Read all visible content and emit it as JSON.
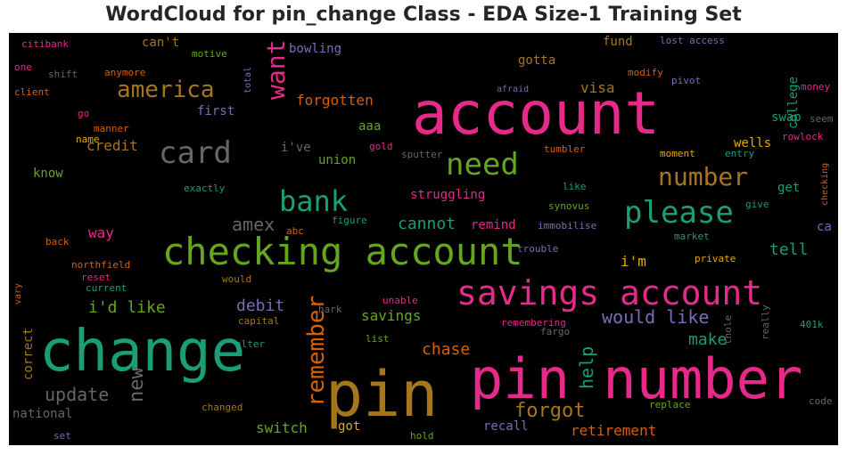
{
  "title": "WordCloud for pin_change Class - EDA Size-1 Training Set",
  "colors": {
    "background": "#000000",
    "palette": [
      "#e7298a",
      "#1b9e77",
      "#66a61e",
      "#d95f02",
      "#7570b3",
      "#a6761d",
      "#666666",
      "#e6ab02"
    ]
  },
  "chart_data": {
    "type": "wordcloud",
    "words": [
      {
        "text": "account",
        "color": "#e7298a"
      },
      {
        "text": "pin number",
        "color": "#e7298a"
      },
      {
        "text": "change",
        "color": "#1b9e77"
      },
      {
        "text": "pin",
        "color": "#a6761d"
      },
      {
        "text": "checking account",
        "color": "#66a61e"
      },
      {
        "text": "savings account",
        "color": "#e7298a"
      },
      {
        "text": "card",
        "color": "#666666"
      },
      {
        "text": "need",
        "color": "#66a61e"
      },
      {
        "text": "bank",
        "color": "#1b9e77"
      },
      {
        "text": "please",
        "color": "#1b9e77"
      },
      {
        "text": "number",
        "color": "#a6761d"
      },
      {
        "text": "america",
        "color": "#a6761d"
      },
      {
        "text": "want",
        "color": "#e7298a"
      },
      {
        "text": "remember",
        "color": "#d95f02"
      },
      {
        "text": "forgot",
        "color": "#a6761d"
      },
      {
        "text": "would like",
        "color": "#7570b3"
      },
      {
        "text": "update",
        "color": "#666666"
      },
      {
        "text": "new",
        "color": "#666666"
      },
      {
        "text": "help",
        "color": "#1b9e77"
      },
      {
        "text": "i'd like",
        "color": "#66a61e"
      },
      {
        "text": "amex",
        "color": "#666666"
      },
      {
        "text": "debit",
        "color": "#7570b3"
      },
      {
        "text": "chase",
        "color": "#d95f02"
      },
      {
        "text": "make",
        "color": "#1b9e77"
      },
      {
        "text": "cannot",
        "color": "#1b9e77"
      },
      {
        "text": "credit",
        "color": "#a6761d"
      },
      {
        "text": "forgotten",
        "color": "#d95f02"
      },
      {
        "text": "visa",
        "color": "#a6761d"
      },
      {
        "text": "tell",
        "color": "#1b9e77"
      },
      {
        "text": "retirement",
        "color": "#d95f02"
      },
      {
        "text": "savings",
        "color": "#66a61e"
      },
      {
        "text": "correct",
        "color": "#a6761d"
      },
      {
        "text": "way",
        "color": "#e7298a"
      },
      {
        "text": "switch",
        "color": "#66a61e"
      },
      {
        "text": "struggling",
        "color": "#e7298a"
      },
      {
        "text": "national",
        "color": "#666666"
      },
      {
        "text": "wells",
        "color": "#e6ab02"
      },
      {
        "text": "recall",
        "color": "#7570b3"
      },
      {
        "text": "i'm",
        "color": "#e6ab02"
      },
      {
        "text": "college",
        "color": "#1b9e77"
      },
      {
        "text": "can't",
        "color": "#a6761d"
      },
      {
        "text": "bowling",
        "color": "#7570b3"
      },
      {
        "text": "gotta",
        "color": "#a6761d"
      },
      {
        "text": "fund",
        "color": "#a6761d"
      },
      {
        "text": "know",
        "color": "#66a61e"
      },
      {
        "text": "first",
        "color": "#7570b3"
      },
      {
        "text": "i've",
        "color": "#666666"
      },
      {
        "text": "union",
        "color": "#66a61e"
      },
      {
        "text": "aaa",
        "color": "#66a61e"
      },
      {
        "text": "swap",
        "color": "#1b9e77"
      },
      {
        "text": "get",
        "color": "#1b9e77"
      },
      {
        "text": "remind",
        "color": "#e7298a"
      },
      {
        "text": "ca",
        "color": "#7570b3"
      },
      {
        "text": "got",
        "color": "#e6ab02"
      },
      {
        "text": "citibank",
        "color": "#e7298a"
      },
      {
        "text": "motive",
        "color": "#66a61e"
      },
      {
        "text": "one",
        "color": "#e7298a"
      },
      {
        "text": "shift",
        "color": "#666666"
      },
      {
        "text": "anymore",
        "color": "#d95f02"
      },
      {
        "text": "total",
        "color": "#7570b3"
      },
      {
        "text": "client",
        "color": "#d95f02"
      },
      {
        "text": "go",
        "color": "#e7298a"
      },
      {
        "text": "manner",
        "color": "#d95f02"
      },
      {
        "text": "name",
        "color": "#e6ab02"
      },
      {
        "text": "exactly",
        "color": "#1b9e77"
      },
      {
        "text": "gold",
        "color": "#e7298a"
      },
      {
        "text": "sputter",
        "color": "#666666"
      },
      {
        "text": "tumbler",
        "color": "#d95f02"
      },
      {
        "text": "afraid",
        "color": "#7570b3"
      },
      {
        "text": "lost access",
        "color": "#7570b3"
      },
      {
        "text": "modify",
        "color": "#d95f02"
      },
      {
        "text": "pivot",
        "color": "#7570b3"
      },
      {
        "text": "money",
        "color": "#e7298a"
      },
      {
        "text": "seem",
        "color": "#666666"
      },
      {
        "text": "rowlock",
        "color": "#e7298a"
      },
      {
        "text": "moment",
        "color": "#e6ab02"
      },
      {
        "text": "entry",
        "color": "#1b9e77"
      },
      {
        "text": "checking",
        "color": "#d95f02"
      },
      {
        "text": "like",
        "color": "#1b9e77"
      },
      {
        "text": "synovus",
        "color": "#66a61e"
      },
      {
        "text": "give",
        "color": "#1b9e77"
      },
      {
        "text": "figure",
        "color": "#1b9e77"
      },
      {
        "text": "immobilise",
        "color": "#7570b3"
      },
      {
        "text": "abc",
        "color": "#d95f02"
      },
      {
        "text": "market",
        "color": "#1b9e77"
      },
      {
        "text": "back",
        "color": "#d95f02"
      },
      {
        "text": "trouble",
        "color": "#7570b3"
      },
      {
        "text": "private",
        "color": "#e6ab02"
      },
      {
        "text": "northfield",
        "color": "#d95f02"
      },
      {
        "text": "reset",
        "color": "#e7298a"
      },
      {
        "text": "would",
        "color": "#a6761d"
      },
      {
        "text": "vary",
        "color": "#d95f02"
      },
      {
        "text": "current",
        "color": "#1b9e77"
      },
      {
        "text": "unable",
        "color": "#e7298a"
      },
      {
        "text": "capital",
        "color": "#a6761d"
      },
      {
        "text": "hark",
        "color": "#666666"
      },
      {
        "text": "remembering",
        "color": "#e7298a"
      },
      {
        "text": "fargo",
        "color": "#666666"
      },
      {
        "text": "thole",
        "color": "#666666"
      },
      {
        "text": "really",
        "color": "#666666"
      },
      {
        "text": "401k",
        "color": "#1b9e77"
      },
      {
        "text": "alter",
        "color": "#1b9e77"
      },
      {
        "text": "list",
        "color": "#66a61e"
      },
      {
        "text": "changed",
        "color": "#a6761d"
      },
      {
        "text": "replace",
        "color": "#66a61e"
      },
      {
        "text": "code",
        "color": "#666666"
      },
      {
        "text": "set",
        "color": "#7570b3"
      },
      {
        "text": "hold",
        "color": "#66a61e"
      }
    ]
  }
}
